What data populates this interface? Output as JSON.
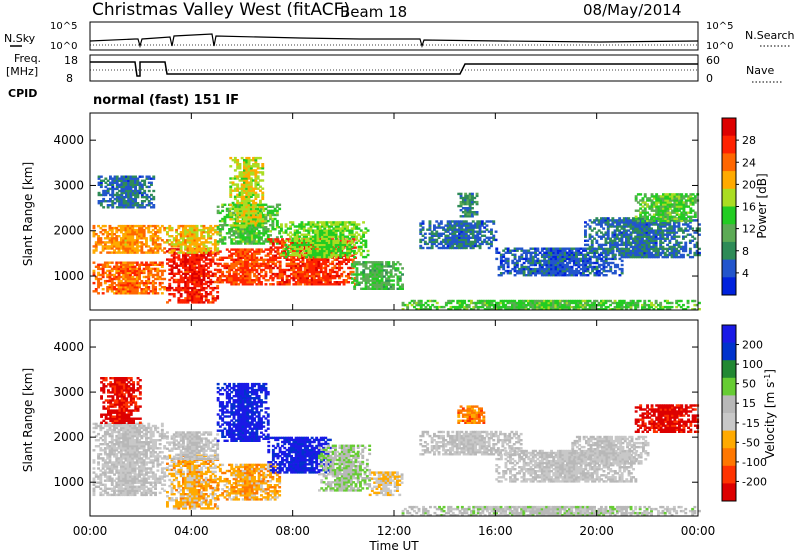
{
  "header": {
    "title": "Christmas Valley West (fitACF)",
    "beam": "Beam 18",
    "date": "08/May/2014"
  },
  "top_panels": {
    "nsky_label": "N.Sky",
    "nsearch_label": "N.Search",
    "count_tick_hi": "10^5",
    "count_tick_lo": "10^0",
    "freq_label": "Freq.",
    "freq_unit": "[MHz]",
    "freq_ticks": [
      "18",
      "8"
    ],
    "nave_label": "Nave",
    "nave_ticks": [
      "60",
      "0"
    ],
    "cpid_label": "CPID",
    "cpid_text": "normal (fast) 151 IF"
  },
  "colors": {
    "power": [
      "#0022dd",
      "#2255cc",
      "#2e8b57",
      "#5caa55",
      "#22cc22",
      "#aadd22",
      "#ffaa00",
      "#ff6600",
      "#ff2200",
      "#dd0000"
    ],
    "velocity": [
      "#1a1ae6",
      "#0033cc",
      "#228833",
      "#66cc33",
      "#b8b8b8",
      "#c8c8c8",
      "#ffaa00",
      "#ff7700",
      "#ff3300",
      "#dd0000"
    ]
  },
  "chart_data": [
    {
      "type": "heatmap",
      "name": "power",
      "ylabel": "Slant Range [km]",
      "yticks": [
        "1000",
        "2000",
        "3000",
        "4000"
      ],
      "ylim": [
        250,
        4600
      ],
      "colorbar_label": "Power [dB]",
      "colorbar_ticks": [
        "4",
        "8",
        "12",
        "16",
        "20",
        "24",
        "28"
      ],
      "colorbar_range": [
        0,
        32
      ],
      "regions": [
        {
          "t0": 0.1,
          "t1": 2.9,
          "r0": 600,
          "r1": 1300,
          "v": 24
        },
        {
          "t0": 0.1,
          "t1": 2.9,
          "r0": 1500,
          "r1": 2100,
          "v": 22
        },
        {
          "t0": 0.3,
          "t1": 2.5,
          "r0": 2500,
          "r1": 3200,
          "v": 6
        },
        {
          "t0": 3.0,
          "t1": 5.0,
          "r0": 400,
          "r1": 1600,
          "v": 28
        },
        {
          "t0": 3.0,
          "t1": 5.0,
          "r0": 1500,
          "r1": 2100,
          "v": 20
        },
        {
          "t0": 5.0,
          "t1": 7.5,
          "r0": 1700,
          "r1": 2600,
          "v": 14
        },
        {
          "t0": 5.0,
          "t1": 7.2,
          "r0": 800,
          "r1": 1600,
          "v": 26
        },
        {
          "t0": 5.5,
          "t1": 6.8,
          "r0": 2100,
          "r1": 3600,
          "v": 18
        },
        {
          "t0": 7.0,
          "t1": 10.5,
          "r0": 800,
          "r1": 1800,
          "v": 27
        },
        {
          "t0": 7.5,
          "t1": 11.0,
          "r0": 1400,
          "r1": 2200,
          "v": 16
        },
        {
          "t0": 10.3,
          "t1": 12.3,
          "r0": 700,
          "r1": 1300,
          "v": 12
        },
        {
          "t0": 13.0,
          "t1": 16.0,
          "r0": 1600,
          "r1": 2200,
          "v": 6
        },
        {
          "t0": 14.5,
          "t1": 15.3,
          "r0": 2300,
          "r1": 2800,
          "v": 8
        },
        {
          "t0": 16.0,
          "t1": 21.0,
          "r0": 1000,
          "r1": 1600,
          "v": 5
        },
        {
          "t0": 19.5,
          "t1": 24.0,
          "r0": 1400,
          "r1": 2300,
          "v": 6
        },
        {
          "t0": 21.5,
          "t1": 24.0,
          "r0": 2200,
          "r1": 2800,
          "v": 14
        },
        {
          "t0": 12.3,
          "t1": 24.0,
          "r0": 250,
          "r1": 450,
          "v": 14
        }
      ]
    },
    {
      "type": "heatmap",
      "name": "velocity",
      "xlabel": "Time UT",
      "xticks": [
        "00:00",
        "04:00",
        "08:00",
        "12:00",
        "16:00",
        "20:00",
        "00:00"
      ],
      "xlim": [
        0,
        24
      ],
      "ylabel": "Slant Range [km]",
      "yticks": [
        "1000",
        "2000",
        "3000",
        "4000"
      ],
      "ylim": [
        250,
        4600
      ],
      "colorbar_label": "Velocity [m s^-1]",
      "colorbar_ticks": [
        "200",
        "100",
        "50",
        "15",
        "-15",
        "-50",
        "-100",
        "-200"
      ],
      "colorbar_range": [
        -250,
        250
      ],
      "regions": [
        {
          "t0": 0.1,
          "t1": 2.9,
          "r0": 700,
          "r1": 2300,
          "v": 0
        },
        {
          "t0": 0.4,
          "t1": 2.0,
          "r0": 2300,
          "r1": 3300,
          "v": -220
        },
        {
          "t0": 3.0,
          "t1": 5.0,
          "r0": 400,
          "r1": 1600,
          "v": -70
        },
        {
          "t0": 3.0,
          "t1": 5.0,
          "r0": 1500,
          "r1": 2100,
          "v": 0
        },
        {
          "t0": 5.0,
          "t1": 7.0,
          "r0": 1900,
          "r1": 3200,
          "v": 220
        },
        {
          "t0": 5.0,
          "t1": 7.5,
          "r0": 600,
          "r1": 1400,
          "v": -80
        },
        {
          "t0": 7.0,
          "t1": 9.5,
          "r0": 1200,
          "r1": 2000,
          "v": 220
        },
        {
          "t0": 9.0,
          "t1": 11.0,
          "r0": 800,
          "r1": 1800,
          "v": 40
        },
        {
          "t0": 11.0,
          "t1": 12.3,
          "r0": 700,
          "r1": 1200,
          "v": -40
        },
        {
          "t0": 14.5,
          "t1": 15.5,
          "r0": 2300,
          "r1": 2700,
          "v": -120
        },
        {
          "t0": 13.0,
          "t1": 17.0,
          "r0": 1600,
          "r1": 2100,
          "v": 0
        },
        {
          "t0": 16.0,
          "t1": 21.5,
          "r0": 1000,
          "r1": 1700,
          "v": 0
        },
        {
          "t0": 21.5,
          "t1": 24.0,
          "r0": 2100,
          "r1": 2700,
          "v": -230
        },
        {
          "t0": 19.0,
          "t1": 22.0,
          "r0": 1400,
          "r1": 2000,
          "v": 0
        },
        {
          "t0": 12.3,
          "t1": 24.0,
          "r0": 250,
          "r1": 450,
          "v": 20
        }
      ]
    }
  ]
}
